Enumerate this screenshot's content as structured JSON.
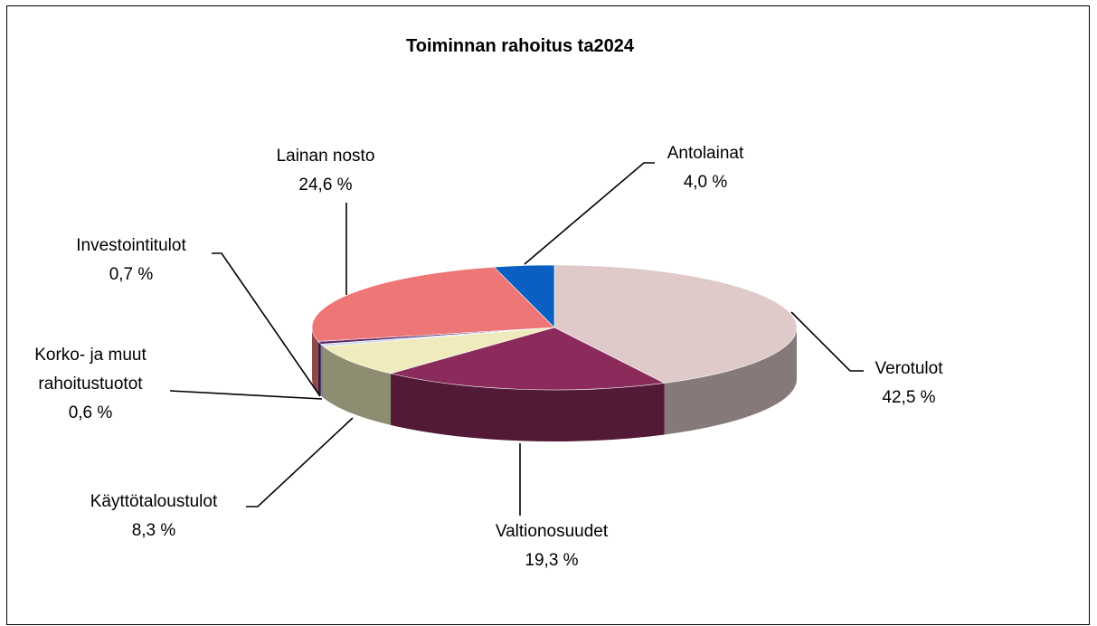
{
  "chart_data": {
    "type": "pie",
    "title": "Toiminnan rahoitus ta2024",
    "categories": [
      "Verotulot",
      "Valtionosuudet",
      "Käyttötaloustulot",
      "Korko- ja muut rahoitustuotot",
      "Investointitulot",
      "Lainan nosto",
      "Antolainat"
    ],
    "values": [
      42.5,
      19.3,
      8.3,
      0.6,
      0.7,
      24.6,
      4.0
    ],
    "value_labels": [
      "42,5 %",
      "19,3 %",
      "8,3 %",
      "0,6 %",
      "0,7 %",
      "24,6 %",
      "4,0 %"
    ],
    "colors": [
      "#dfc9c9",
      "#8b2b5b",
      "#efebbd",
      "#c9d9ea",
      "#5b2a6b",
      "#ee7676",
      "#0b5fc2"
    ]
  }
}
